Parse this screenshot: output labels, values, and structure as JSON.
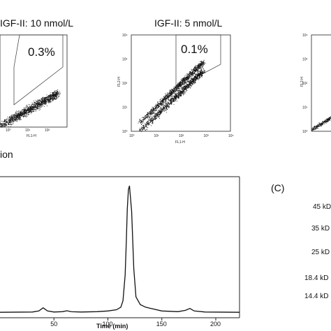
{
  "chart_data": [
    {
      "type": "scatter",
      "panel": "flow-left",
      "title": "IGF-II: 10 nmol/L",
      "gate_percent": "0.3%",
      "xlabel": "FL1-H",
      "xticks": [
        "10⁰",
        "10¹",
        "10²"
      ],
      "yticks": [],
      "caption": "ion"
    },
    {
      "type": "scatter",
      "panel": "flow-middle",
      "title": "IGF-II: 5 nmol/L",
      "gate_percent": "0.1%",
      "xlabel": "FL1-H",
      "ylabel": "FL2-H",
      "xlim": [
        1,
        10000
      ],
      "ylim": [
        1,
        10000
      ],
      "xscale": "log",
      "yscale": "log",
      "xticks": [
        "10⁰",
        "10¹",
        "10²",
        "10³",
        "10⁴"
      ],
      "yticks": [
        "10⁰",
        "10¹",
        "10²",
        "10³",
        "10⁴"
      ]
    },
    {
      "type": "scatter",
      "panel": "flow-right",
      "ylabel": "FL2-H",
      "yticks": [
        "10⁰",
        "10¹",
        "10²",
        "10³",
        "10⁴"
      ]
    },
    {
      "type": "line",
      "panel": "chromatogram",
      "xlabel": "Time (min)",
      "xlim": [
        0,
        222
      ],
      "xticks": [
        50,
        100,
        150,
        200
      ],
      "x": [
        0,
        30,
        36,
        40,
        44,
        50,
        58,
        62,
        66,
        75,
        90,
        100,
        108,
        112,
        114,
        116,
        117,
        118,
        119,
        120,
        122,
        124,
        126,
        130,
        135,
        140,
        150,
        165,
        172,
        176,
        180,
        190,
        222
      ],
      "y": [
        0.01,
        0.012,
        0.02,
        0.045,
        0.02,
        0.012,
        0.015,
        0.022,
        0.014,
        0.012,
        0.015,
        0.02,
        0.03,
        0.05,
        0.1,
        0.3,
        0.55,
        0.82,
        0.97,
        1.0,
        0.8,
        0.35,
        0.13,
        0.07,
        0.05,
        0.04,
        0.02,
        0.015,
        0.025,
        0.04,
        0.02,
        0.012,
        0.01
      ]
    },
    {
      "type": "table",
      "panel": "gel",
      "label": "(C)",
      "markers": [
        "45 kD",
        "35 kD",
        "25 kD",
        "18.4 kD",
        "14.4 kD"
      ]
    }
  ]
}
